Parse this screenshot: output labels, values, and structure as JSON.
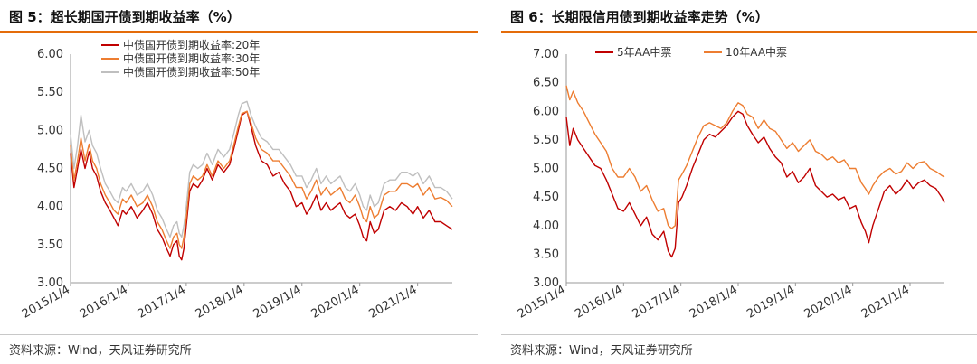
{
  "left": {
    "title": "图 5：超长期国开债到期收益率（%）",
    "source": "资料来源：Wind，天风证券研究所",
    "chart_data": {
      "type": "line",
      "ylim": [
        3.0,
        6.0
      ],
      "yticks": [
        "3.00",
        "3.50",
        "4.00",
        "4.50",
        "5.00",
        "5.50",
        "6.00"
      ],
      "xticks": [
        "2015/1/4",
        "2016/1/4",
        "2017/1/4",
        "2018/1/4",
        "2019/1/4",
        "2020/1/4",
        "2021/1/4"
      ],
      "xrange": [
        2015.0,
        2021.6
      ],
      "grid": false,
      "legend": "top-left",
      "series": [
        {
          "name": "中债国开债到期收益率:20年",
          "color": "#c00000",
          "x": [
            2015.0,
            2015.06,
            2015.12,
            2015.18,
            2015.25,
            2015.32,
            2015.38,
            2015.45,
            2015.52,
            2015.6,
            2015.68,
            2015.75,
            2015.82,
            2015.9,
            2015.96,
            2016.05,
            2016.15,
            2016.25,
            2016.33,
            2016.42,
            2016.5,
            2016.58,
            2016.66,
            2016.72,
            2016.78,
            2016.84,
            2016.88,
            2016.92,
            2016.96,
            2017.0,
            2017.06,
            2017.12,
            2017.2,
            2017.28,
            2017.36,
            2017.45,
            2017.55,
            2017.65,
            2017.75,
            2017.82,
            2017.9,
            2017.96,
            2018.05,
            2018.12,
            2018.2,
            2018.3,
            2018.4,
            2018.5,
            2018.6,
            2018.7,
            2018.8,
            2018.9,
            2019.0,
            2019.08,
            2019.16,
            2019.25,
            2019.33,
            2019.42,
            2019.5,
            2019.58,
            2019.66,
            2019.75,
            2019.83,
            2019.92,
            2020.0,
            2020.06,
            2020.12,
            2020.18,
            2020.25,
            2020.32,
            2020.42,
            2020.52,
            2020.62,
            2020.72,
            2020.82,
            2020.92,
            2021.0,
            2021.1,
            2021.2,
            2021.3,
            2021.4,
            2021.5,
            2021.6
          ],
          "y": [
            4.7,
            4.25,
            4.5,
            4.75,
            4.5,
            4.72,
            4.5,
            4.4,
            4.2,
            4.05,
            3.95,
            3.85,
            3.75,
            3.95,
            3.9,
            4.0,
            3.85,
            3.95,
            4.05,
            3.9,
            3.7,
            3.6,
            3.45,
            3.35,
            3.5,
            3.55,
            3.35,
            3.3,
            3.45,
            3.75,
            4.2,
            4.3,
            4.25,
            4.35,
            4.5,
            4.35,
            4.55,
            4.45,
            4.55,
            4.75,
            5.0,
            5.2,
            5.25,
            5.05,
            4.8,
            4.6,
            4.55,
            4.4,
            4.45,
            4.3,
            4.2,
            4.0,
            4.05,
            3.9,
            4.0,
            4.15,
            3.95,
            4.05,
            3.95,
            4.0,
            4.05,
            3.9,
            3.85,
            3.9,
            3.75,
            3.6,
            3.55,
            3.8,
            3.65,
            3.7,
            3.95,
            4.0,
            3.95,
            4.05,
            4.0,
            3.9,
            4.0,
            3.85,
            3.95,
            3.8,
            3.8,
            3.75,
            3.7
          ]
        },
        {
          "name": "中债国开债到期收益率:30年",
          "color": "#ed7d31",
          "x": [
            2015.0,
            2015.06,
            2015.12,
            2015.18,
            2015.25,
            2015.32,
            2015.38,
            2015.45,
            2015.52,
            2015.6,
            2015.68,
            2015.75,
            2015.82,
            2015.9,
            2015.96,
            2016.05,
            2016.15,
            2016.25,
            2016.33,
            2016.42,
            2016.5,
            2016.58,
            2016.66,
            2016.72,
            2016.78,
            2016.84,
            2016.88,
            2016.92,
            2016.96,
            2017.0,
            2017.06,
            2017.12,
            2017.2,
            2017.28,
            2017.36,
            2017.45,
            2017.55,
            2017.65,
            2017.75,
            2017.82,
            2017.9,
            2017.96,
            2018.05,
            2018.12,
            2018.2,
            2018.3,
            2018.4,
            2018.5,
            2018.6,
            2018.7,
            2018.8,
            2018.9,
            2019.0,
            2019.08,
            2019.16,
            2019.25,
            2019.33,
            2019.42,
            2019.5,
            2019.58,
            2019.66,
            2019.75,
            2019.83,
            2019.92,
            2020.0,
            2020.06,
            2020.12,
            2020.18,
            2020.25,
            2020.32,
            2020.42,
            2020.52,
            2020.62,
            2020.72,
            2020.82,
            2020.92,
            2021.0,
            2021.1,
            2021.2,
            2021.3,
            2021.4,
            2021.5,
            2021.6
          ],
          "y": [
            4.8,
            4.35,
            4.6,
            4.9,
            4.6,
            4.82,
            4.6,
            4.5,
            4.3,
            4.15,
            4.05,
            3.95,
            3.9,
            4.1,
            4.05,
            4.15,
            4.0,
            4.05,
            4.15,
            4.0,
            3.8,
            3.7,
            3.55,
            3.45,
            3.6,
            3.65,
            3.5,
            3.45,
            3.6,
            3.85,
            4.3,
            4.4,
            4.35,
            4.4,
            4.55,
            4.4,
            4.6,
            4.5,
            4.6,
            4.8,
            5.05,
            5.22,
            5.25,
            5.1,
            4.9,
            4.75,
            4.7,
            4.6,
            4.6,
            4.5,
            4.4,
            4.25,
            4.25,
            4.1,
            4.2,
            4.35,
            4.15,
            4.25,
            4.15,
            4.2,
            4.25,
            4.1,
            4.05,
            4.15,
            4.0,
            3.85,
            3.8,
            4.0,
            3.85,
            3.9,
            4.15,
            4.2,
            4.2,
            4.3,
            4.3,
            4.25,
            4.3,
            4.15,
            4.25,
            4.1,
            4.12,
            4.08,
            4.0
          ]
        },
        {
          "name": "中债国开债到期收益率:50年",
          "color": "#bfbfbf",
          "x": [
            2015.0,
            2015.06,
            2015.12,
            2015.18,
            2015.25,
            2015.32,
            2015.38,
            2015.45,
            2015.52,
            2015.6,
            2015.68,
            2015.75,
            2015.82,
            2015.9,
            2015.96,
            2016.05,
            2016.15,
            2016.25,
            2016.33,
            2016.42,
            2016.5,
            2016.58,
            2016.66,
            2016.72,
            2016.78,
            2016.84,
            2016.88,
            2016.92,
            2016.96,
            2017.0,
            2017.06,
            2017.12,
            2017.2,
            2017.28,
            2017.36,
            2017.45,
            2017.55,
            2017.65,
            2017.75,
            2017.82,
            2017.9,
            2017.96,
            2018.05,
            2018.12,
            2018.2,
            2018.3,
            2018.4,
            2018.5,
            2018.6,
            2018.7,
            2018.8,
            2018.9,
            2019.0,
            2019.08,
            2019.16,
            2019.25,
            2019.33,
            2019.42,
            2019.5,
            2019.58,
            2019.66,
            2019.75,
            2019.83,
            2019.92,
            2020.0,
            2020.06,
            2020.12,
            2020.18,
            2020.25,
            2020.32,
            2020.42,
            2020.52,
            2020.62,
            2020.72,
            2020.82,
            2020.92,
            2021.0,
            2021.1,
            2021.2,
            2021.3,
            2021.4,
            2021.5,
            2021.6
          ],
          "y": [
            4.95,
            4.5,
            4.8,
            5.2,
            4.85,
            5.0,
            4.8,
            4.7,
            4.5,
            4.3,
            4.2,
            4.1,
            4.05,
            4.25,
            4.2,
            4.3,
            4.15,
            4.2,
            4.3,
            4.15,
            3.95,
            3.85,
            3.7,
            3.6,
            3.75,
            3.8,
            3.65,
            3.6,
            3.75,
            4.0,
            4.45,
            4.55,
            4.5,
            4.55,
            4.7,
            4.55,
            4.75,
            4.65,
            4.75,
            4.95,
            5.2,
            5.35,
            5.38,
            5.2,
            5.05,
            4.9,
            4.85,
            4.75,
            4.75,
            4.65,
            4.55,
            4.4,
            4.4,
            4.25,
            4.35,
            4.5,
            4.3,
            4.4,
            4.3,
            4.35,
            4.4,
            4.25,
            4.2,
            4.3,
            4.15,
            4.0,
            3.95,
            4.15,
            4.0,
            4.05,
            4.3,
            4.35,
            4.35,
            4.45,
            4.45,
            4.4,
            4.45,
            4.3,
            4.4,
            4.25,
            4.25,
            4.2,
            4.1
          ]
        }
      ]
    }
  },
  "right": {
    "title": "图 6：长期限信用债到期收益率走势（%）",
    "source": "资料来源：Wind，天风证券研究所",
    "chart_data": {
      "type": "line",
      "ylim": [
        3.0,
        7.0
      ],
      "yticks": [
        "3.00",
        "3.50",
        "4.00",
        "4.50",
        "5.00",
        "5.50",
        "6.00",
        "6.50",
        "7.00"
      ],
      "xticks": [
        "2015/1/4",
        "2016/1/4",
        "2017/1/4",
        "2018/1/4",
        "2019/1/4",
        "2020/1/4",
        "2021/1/4"
      ],
      "xrange": [
        2015.0,
        2021.6
      ],
      "grid": false,
      "legend": "top",
      "series": [
        {
          "name": "5年AA中票",
          "color": "#c00000",
          "x": [
            2015.0,
            2015.06,
            2015.12,
            2015.2,
            2015.3,
            2015.4,
            2015.5,
            2015.6,
            2015.7,
            2015.8,
            2015.9,
            2016.0,
            2016.1,
            2016.2,
            2016.3,
            2016.4,
            2016.5,
            2016.6,
            2016.7,
            2016.78,
            2016.84,
            2016.9,
            2016.96,
            2017.02,
            2017.1,
            2017.2,
            2017.3,
            2017.4,
            2017.5,
            2017.6,
            2017.7,
            2017.8,
            2017.9,
            2018.0,
            2018.08,
            2018.16,
            2018.25,
            2018.35,
            2018.45,
            2018.55,
            2018.65,
            2018.75,
            2018.85,
            2018.95,
            2019.05,
            2019.15,
            2019.25,
            2019.35,
            2019.45,
            2019.55,
            2019.65,
            2019.75,
            2019.85,
            2019.95,
            2020.05,
            2020.15,
            2020.22,
            2020.28,
            2020.35,
            2020.45,
            2020.55,
            2020.65,
            2020.75,
            2020.85,
            2020.95,
            2021.05,
            2021.15,
            2021.25,
            2021.35,
            2021.45,
            2021.55,
            2021.6
          ],
          "y": [
            5.9,
            5.4,
            5.7,
            5.5,
            5.35,
            5.2,
            5.05,
            5.0,
            4.8,
            4.55,
            4.3,
            4.25,
            4.4,
            4.2,
            4.0,
            4.15,
            3.85,
            3.75,
            3.9,
            3.55,
            3.45,
            3.6,
            4.4,
            4.5,
            4.7,
            5.0,
            5.25,
            5.5,
            5.6,
            5.55,
            5.65,
            5.75,
            5.9,
            6.0,
            5.95,
            5.75,
            5.6,
            5.45,
            5.55,
            5.35,
            5.2,
            5.1,
            4.85,
            4.95,
            4.75,
            4.85,
            5.0,
            4.7,
            4.6,
            4.5,
            4.55,
            4.45,
            4.5,
            4.3,
            4.35,
            4.05,
            3.9,
            3.7,
            4.0,
            4.3,
            4.6,
            4.7,
            4.55,
            4.65,
            4.8,
            4.65,
            4.75,
            4.8,
            4.7,
            4.65,
            4.5,
            4.4
          ]
        },
        {
          "name": "10年AA中票",
          "color": "#ed7d31",
          "x": [
            2015.0,
            2015.06,
            2015.12,
            2015.2,
            2015.3,
            2015.4,
            2015.5,
            2015.6,
            2015.7,
            2015.8,
            2015.9,
            2016.0,
            2016.1,
            2016.2,
            2016.3,
            2016.4,
            2016.5,
            2016.6,
            2016.7,
            2016.78,
            2016.84,
            2016.9,
            2016.96,
            2017.02,
            2017.1,
            2017.2,
            2017.3,
            2017.4,
            2017.5,
            2017.6,
            2017.7,
            2017.8,
            2017.9,
            2018.0,
            2018.08,
            2018.16,
            2018.25,
            2018.35,
            2018.45,
            2018.55,
            2018.65,
            2018.75,
            2018.85,
            2018.95,
            2019.05,
            2019.15,
            2019.25,
            2019.35,
            2019.45,
            2019.55,
            2019.65,
            2019.75,
            2019.85,
            2019.95,
            2020.05,
            2020.15,
            2020.22,
            2020.28,
            2020.35,
            2020.45,
            2020.55,
            2020.65,
            2020.75,
            2020.85,
            2020.95,
            2021.05,
            2021.15,
            2021.25,
            2021.35,
            2021.45,
            2021.55,
            2021.6
          ],
          "y": [
            6.45,
            6.2,
            6.35,
            6.15,
            6.0,
            5.8,
            5.6,
            5.45,
            5.3,
            5.0,
            4.85,
            4.85,
            5.0,
            4.85,
            4.6,
            4.7,
            4.45,
            4.25,
            4.3,
            4.0,
            3.95,
            4.0,
            4.8,
            4.9,
            5.05,
            5.3,
            5.55,
            5.75,
            5.8,
            5.75,
            5.7,
            5.8,
            6.0,
            6.15,
            6.1,
            5.95,
            5.9,
            5.7,
            5.85,
            5.7,
            5.65,
            5.5,
            5.35,
            5.45,
            5.3,
            5.4,
            5.5,
            5.3,
            5.25,
            5.15,
            5.2,
            5.1,
            5.15,
            5.0,
            5.0,
            4.75,
            4.65,
            4.55,
            4.7,
            4.85,
            4.95,
            5.0,
            4.9,
            4.95,
            5.1,
            5.0,
            5.1,
            5.12,
            5.0,
            4.95,
            4.88,
            4.85
          ]
        }
      ]
    }
  }
}
